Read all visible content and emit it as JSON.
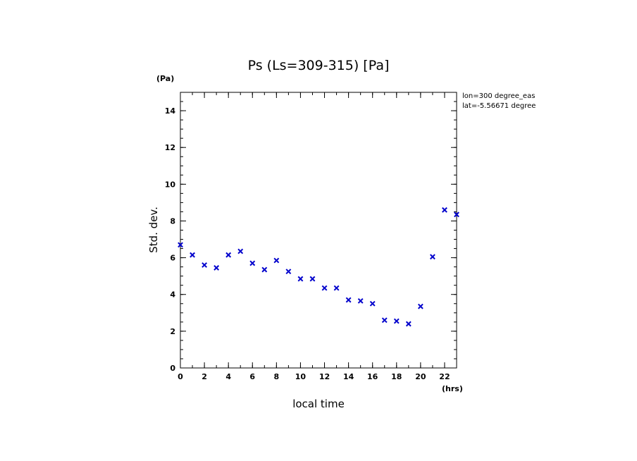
{
  "chart_data": {
    "type": "scatter",
    "title": "Ps (Ls=309-315) [Pa]",
    "xlabel": "local time",
    "ylabel": "Std. dev.",
    "x_unit": "(hrs)",
    "y_unit": "(Pa)",
    "xlim": [
      0,
      23
    ],
    "ylim": [
      0,
      15
    ],
    "x_ticks": [
      0,
      2,
      4,
      6,
      8,
      10,
      12,
      14,
      16,
      18,
      20,
      22
    ],
    "y_ticks": [
      0,
      2,
      4,
      6,
      8,
      10,
      12,
      14
    ],
    "annotations": [
      "lon=300 degree_eas",
      "lat=-5.56671 degree"
    ],
    "marker_color": "#0000cc",
    "marker": "x",
    "grid": false,
    "x": [
      0,
      1,
      2,
      3,
      4,
      5,
      6,
      7,
      8,
      9,
      10,
      11,
      12,
      13,
      14,
      15,
      16,
      17,
      18,
      19,
      20,
      21,
      22,
      23
    ],
    "y": [
      6.7,
      6.15,
      5.6,
      5.45,
      6.15,
      6.35,
      5.7,
      5.35,
      5.85,
      5.25,
      4.85,
      4.85,
      4.35,
      4.35,
      3.7,
      3.65,
      3.5,
      2.6,
      2.55,
      2.4,
      3.35,
      6.05,
      8.6,
      8.35
    ]
  }
}
